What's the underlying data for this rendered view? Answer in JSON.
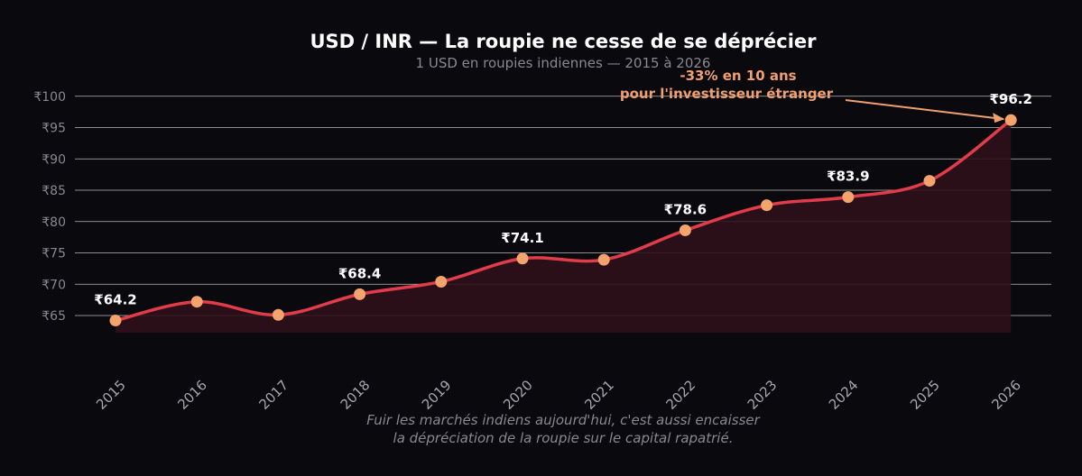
{
  "chart_data": {
    "type": "line",
    "title": "USD / INR — La roupie ne cesse de se déprécier",
    "subtitle": "1 USD en roupies indiennes — 2015 à 2026",
    "x": [
      "2015",
      "2016",
      "2017",
      "2018",
      "2019",
      "2020",
      "2021",
      "2022",
      "2023",
      "2024",
      "2025",
      "2026"
    ],
    "values": [
      64.2,
      67.2,
      65.1,
      68.4,
      70.4,
      74.1,
      73.9,
      78.6,
      82.6,
      83.9,
      86.5,
      96.2
    ],
    "data_labels": [
      {
        "index": 0,
        "text": "₹64.2"
      },
      {
        "index": 3,
        "text": "₹68.4"
      },
      {
        "index": 5,
        "text": "₹74.1"
      },
      {
        "index": 7,
        "text": "₹78.6"
      },
      {
        "index": 9,
        "text": "₹83.9"
      },
      {
        "index": 11,
        "text": "₹96.2"
      }
    ],
    "yticks": [
      65,
      70,
      75,
      80,
      85,
      90,
      95,
      100
    ],
    "ytick_labels": [
      "₹65",
      "₹70",
      "₹75",
      "₹80",
      "₹85",
      "₹90",
      "₹95",
      "₹100"
    ],
    "ylim": [
      60,
      103
    ],
    "grid": "horizontal",
    "annotation": {
      "lines": [
        "-33% en 10 ans",
        "pour l'investisseur étranger"
      ],
      "target_index": 11
    },
    "caption": [
      "Fuir les marchés indiens aujourd'hui, c'est aussi encaisser",
      "la dépréciation de la roupie sur le capital rapatrié."
    ],
    "colors": {
      "background": "#0a090d",
      "line": "#e03c4a",
      "marker": "#f4a36c",
      "fill": "#2d1119",
      "grid": "#d8d8d8",
      "annotation": "#f0a070"
    }
  }
}
